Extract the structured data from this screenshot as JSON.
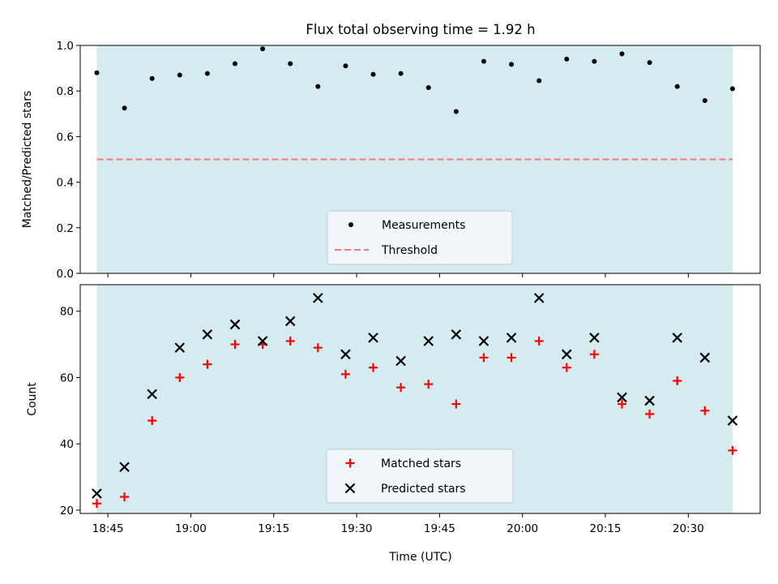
{
  "title": "Flux total observing time = 1.92 h",
  "xlabel": "Time (UTC)",
  "colors": {
    "band": "#d4ebf0",
    "measurement": "#000000",
    "threshold": "#f77a7a",
    "matched": "#ff0000",
    "predicted": "#000000"
  },
  "chart_data": [
    {
      "type": "scatter",
      "name": "ratio-panel",
      "ylabel": "Matched/Predicted stars",
      "ylim": [
        0.0,
        1.0
      ],
      "yticks": [
        "0.0",
        "0.2",
        "0.4",
        "0.6",
        "0.8",
        "1.0"
      ],
      "ytick_values": [
        0.0,
        0.2,
        0.4,
        0.6,
        0.8,
        1.0
      ],
      "legend_position": "bottom-center",
      "series": [
        {
          "name": "Measurements",
          "marker": "dot",
          "x": [
            "18:43",
            "18:48",
            "18:53",
            "18:58",
            "19:03",
            "19:08",
            "19:13",
            "19:18",
            "19:23",
            "19:28",
            "19:33",
            "19:38",
            "19:43",
            "19:48",
            "19:53",
            "19:58",
            "20:03",
            "20:08",
            "20:13",
            "20:18",
            "20:23",
            "20:28",
            "20:33",
            "20:38"
          ],
          "y": [
            0.88,
            0.725,
            0.855,
            0.87,
            0.877,
            0.92,
            0.985,
            0.92,
            0.82,
            0.91,
            0.873,
            0.877,
            0.815,
            0.71,
            0.93,
            0.917,
            0.845,
            0.94,
            0.93,
            0.963,
            0.925,
            0.82,
            0.758,
            0.81
          ]
        },
        {
          "name": "Threshold",
          "marker": "dashed-line",
          "x": [
            "18:43",
            "20:38"
          ],
          "y": [
            0.5,
            0.5
          ]
        }
      ]
    },
    {
      "type": "scatter",
      "name": "count-panel",
      "ylabel": "Count",
      "ylim": [
        19,
        88
      ],
      "yticks": [
        "20",
        "40",
        "60",
        "80"
      ],
      "ytick_values": [
        20,
        40,
        60,
        80
      ],
      "legend_position": "bottom-center",
      "series": [
        {
          "name": "Matched stars",
          "marker": "plus",
          "x": [
            "18:43",
            "18:48",
            "18:53",
            "18:58",
            "19:03",
            "19:08",
            "19:13",
            "19:18",
            "19:23",
            "19:28",
            "19:33",
            "19:38",
            "19:43",
            "19:48",
            "19:53",
            "19:58",
            "20:03",
            "20:08",
            "20:13",
            "20:18",
            "20:23",
            "20:28",
            "20:33",
            "20:38"
          ],
          "y": [
            22,
            24,
            47,
            60,
            64,
            70,
            70,
            71,
            69,
            61,
            63,
            57,
            58,
            52,
            66,
            66,
            71,
            63,
            67,
            52,
            49,
            59,
            50,
            38
          ]
        },
        {
          "name": "Predicted stars",
          "marker": "x",
          "x": [
            "18:43",
            "18:48",
            "18:53",
            "18:58",
            "19:03",
            "19:08",
            "19:13",
            "19:18",
            "19:23",
            "19:28",
            "19:33",
            "19:38",
            "19:43",
            "19:48",
            "19:53",
            "19:58",
            "20:03",
            "20:08",
            "20:13",
            "20:18",
            "20:23",
            "20:28",
            "20:33",
            "20:38"
          ],
          "y": [
            25,
            33,
            55,
            69,
            73,
            76,
            71,
            77,
            84,
            67,
            72,
            65,
            71,
            73,
            71,
            72,
            84,
            67,
            72,
            54,
            53,
            72,
            66,
            47
          ]
        }
      ]
    }
  ],
  "shared_x": {
    "xlim": [
      "18:40",
      "20:43"
    ],
    "band": [
      "18:43",
      "20:38"
    ],
    "xticks": [
      "18:45",
      "19:00",
      "19:15",
      "19:30",
      "19:45",
      "20:00",
      "20:15",
      "20:30"
    ]
  }
}
